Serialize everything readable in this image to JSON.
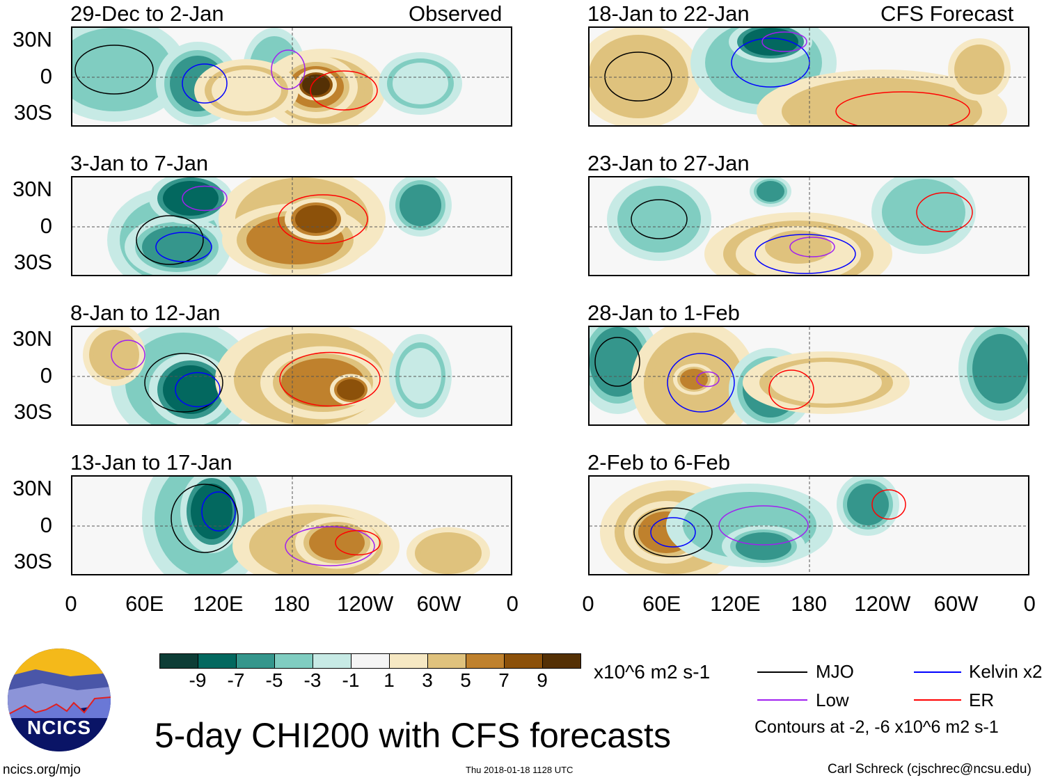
{
  "chart_data": {
    "type": "heatmap",
    "title": "5-day CHI200 with CFS forecasts",
    "variable": "CHI200",
    "units": "x10^6 m2 s-1",
    "observed_label": "Observed",
    "forecast_label": "CFS Forecast",
    "y_ticks": [
      "30N",
      "0",
      "30S"
    ],
    "x_ticks": [
      "0",
      "60E",
      "120E",
      "180",
      "120W",
      "60W",
      "0"
    ],
    "panels_left": [
      "29-Dec to 2-Jan",
      "3-Jan to 7-Jan",
      "8-Jan to 12-Jan",
      "13-Jan to 17-Jan"
    ],
    "panels_right": [
      "18-Jan to 22-Jan",
      "23-Jan to 27-Jan",
      "28-Jan to 1-Feb",
      "2-Feb to 6-Feb"
    ],
    "colorbar": {
      "labels": [
        "-9",
        "-7",
        "-5",
        "-3",
        "-1",
        "1",
        "3",
        "5",
        "7",
        "9"
      ],
      "colors": [
        "#0d3d36",
        "#03685f",
        "#35968c",
        "#80cdc1",
        "#c7eae5",
        "#f5f5f5",
        "#f6e8c3",
        "#dfc27d",
        "#bf812d",
        "#8c510a",
        "#543005"
      ]
    },
    "legend": [
      {
        "label": "MJO",
        "color": "#000000"
      },
      {
        "label": "Kelvin x2",
        "color": "#0000ff"
      },
      {
        "label": "Low",
        "color": "#a020f0"
      },
      {
        "label": "ER",
        "color": "#ff0000"
      }
    ],
    "contour_note": "Contours at -2, -6 x10^6 m2 s-1"
  },
  "footer": {
    "logo_text": "NCICS",
    "url": "ncics.org/mjo",
    "timestamp": "Thu 2018-01-18 1128 UTC",
    "credit": "Carl Schreck (cjschrec@ncsu.edu)"
  }
}
